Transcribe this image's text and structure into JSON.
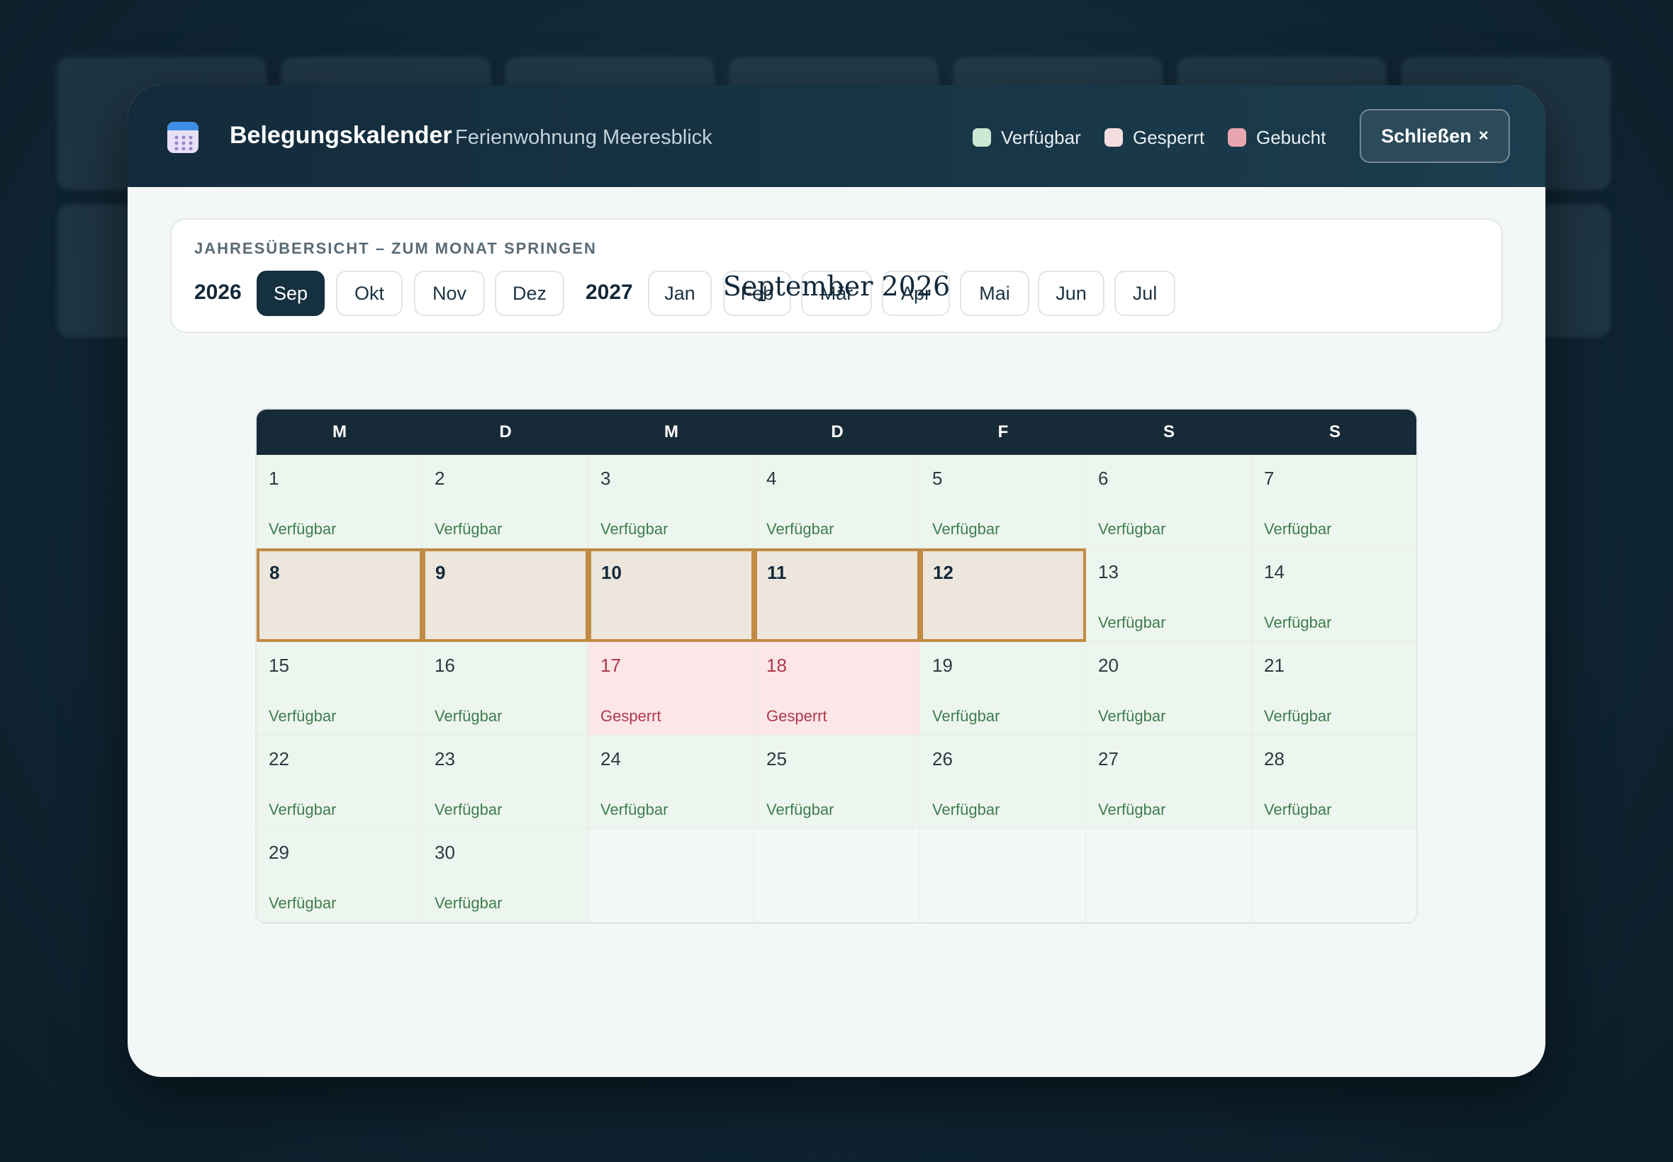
{
  "header": {
    "title": "Belegungskalender",
    "subtitle": "Ferienwohnung Meeresblick",
    "close_label": "Schließen",
    "close_icon": "×"
  },
  "legend": [
    {
      "label": "Verfügbar",
      "color": "#cde8d2"
    },
    {
      "label": "Gesperrt",
      "color": "#f3dde1"
    },
    {
      "label": "Gebucht",
      "color": "#e7a5b0"
    }
  ],
  "overview": {
    "heading": "JAHRESÜBERSICHT – ZUM MONAT SPRINGEN",
    "years": [
      {
        "year": "2026",
        "months": [
          "Sep",
          "Okt",
          "Nov",
          "Dez"
        ]
      },
      {
        "year": "2027",
        "months": [
          "Jan",
          "Feb",
          "Mär",
          "Apr",
          "Mai",
          "Jun",
          "Jul"
        ]
      }
    ],
    "active_month": "Sep"
  },
  "calendar": {
    "month_title": "September 2026",
    "weekdays": [
      "M",
      "D",
      "M",
      "D",
      "F",
      "S",
      "S"
    ],
    "status_labels": {
      "available": "Verfügbar",
      "blocked": "Gesperrt"
    },
    "days": [
      {
        "day": "1",
        "status": "Verfügbar",
        "state": "available"
      },
      {
        "day": "2",
        "status": "Verfügbar",
        "state": "available"
      },
      {
        "day": "3",
        "status": "Verfügbar",
        "state": "available"
      },
      {
        "day": "4",
        "status": "Verfügbar",
        "state": "available"
      },
      {
        "day": "5",
        "status": "Verfügbar",
        "state": "available"
      },
      {
        "day": "6",
        "status": "Verfügbar",
        "state": "available"
      },
      {
        "day": "7",
        "status": "Verfügbar",
        "state": "available"
      },
      {
        "day": "8",
        "status": "",
        "state": "selected"
      },
      {
        "day": "9",
        "status": "",
        "state": "selected"
      },
      {
        "day": "10",
        "status": "",
        "state": "selected"
      },
      {
        "day": "11",
        "status": "",
        "state": "selected"
      },
      {
        "day": "12",
        "status": "",
        "state": "selected"
      },
      {
        "day": "13",
        "status": "Verfügbar",
        "state": "available"
      },
      {
        "day": "14",
        "status": "Verfügbar",
        "state": "available"
      },
      {
        "day": "15",
        "status": "Verfügbar",
        "state": "available"
      },
      {
        "day": "16",
        "status": "Verfügbar",
        "state": "available"
      },
      {
        "day": "17",
        "status": "Gesperrt",
        "state": "blocked"
      },
      {
        "day": "18",
        "status": "Gesperrt",
        "state": "blocked"
      },
      {
        "day": "19",
        "status": "Verfügbar",
        "state": "available"
      },
      {
        "day": "20",
        "status": "Verfügbar",
        "state": "available"
      },
      {
        "day": "21",
        "status": "Verfügbar",
        "state": "available"
      },
      {
        "day": "22",
        "status": "Verfügbar",
        "state": "available"
      },
      {
        "day": "23",
        "status": "Verfügbar",
        "state": "available"
      },
      {
        "day": "24",
        "status": "Verfügbar",
        "state": "available"
      },
      {
        "day": "25",
        "status": "Verfügbar",
        "state": "available"
      },
      {
        "day": "26",
        "status": "Verfügbar",
        "state": "available"
      },
      {
        "day": "27",
        "status": "Verfügbar",
        "state": "available"
      },
      {
        "day": "28",
        "status": "Verfügbar",
        "state": "available"
      },
      {
        "day": "29",
        "status": "Verfügbar",
        "state": "available"
      },
      {
        "day": "30",
        "status": "Verfügbar",
        "state": "available"
      }
    ],
    "selection_color": "#c28b45"
  }
}
